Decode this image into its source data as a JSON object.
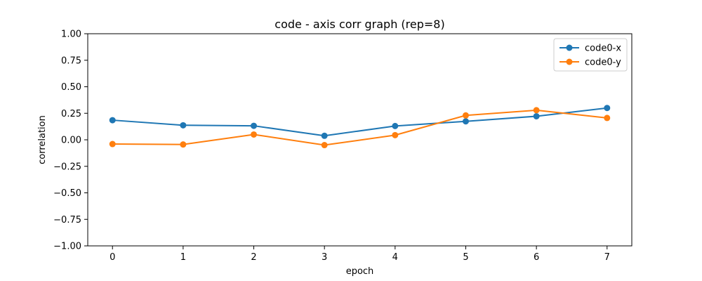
{
  "chart_data": {
    "type": "line",
    "title": "code - axis corr graph (rep=8)",
    "xlabel": "epoch",
    "ylabel": "correlation",
    "x": [
      0,
      1,
      2,
      3,
      4,
      5,
      6,
      7
    ],
    "xlim": [
      -0.35,
      7.35
    ],
    "ylim": [
      -1.0,
      1.0
    ],
    "xticks": [
      0,
      1,
      2,
      3,
      4,
      5,
      6,
      7
    ],
    "xtick_labels": [
      "0",
      "1",
      "2",
      "3",
      "4",
      "5",
      "6",
      "7"
    ],
    "yticks": [
      -1.0,
      -0.75,
      -0.5,
      -0.25,
      0.0,
      0.25,
      0.5,
      0.75,
      1.0
    ],
    "ytick_labels": [
      "−1.00",
      "−0.75",
      "−0.50",
      "−0.25",
      "0.00",
      "0.25",
      "0.50",
      "0.75",
      "1.00"
    ],
    "grid": false,
    "legend_position": "top-right",
    "series": [
      {
        "name": "code0-x",
        "color": "#1f77b4",
        "marker": "circle",
        "values": [
          0.185,
          0.137,
          0.132,
          0.038,
          0.13,
          0.174,
          0.222,
          0.3
        ]
      },
      {
        "name": "code0-y",
        "color": "#ff7f0e",
        "marker": "circle",
        "values": [
          -0.04,
          -0.044,
          0.05,
          -0.05,
          0.044,
          0.23,
          0.279,
          0.206
        ]
      }
    ]
  }
}
